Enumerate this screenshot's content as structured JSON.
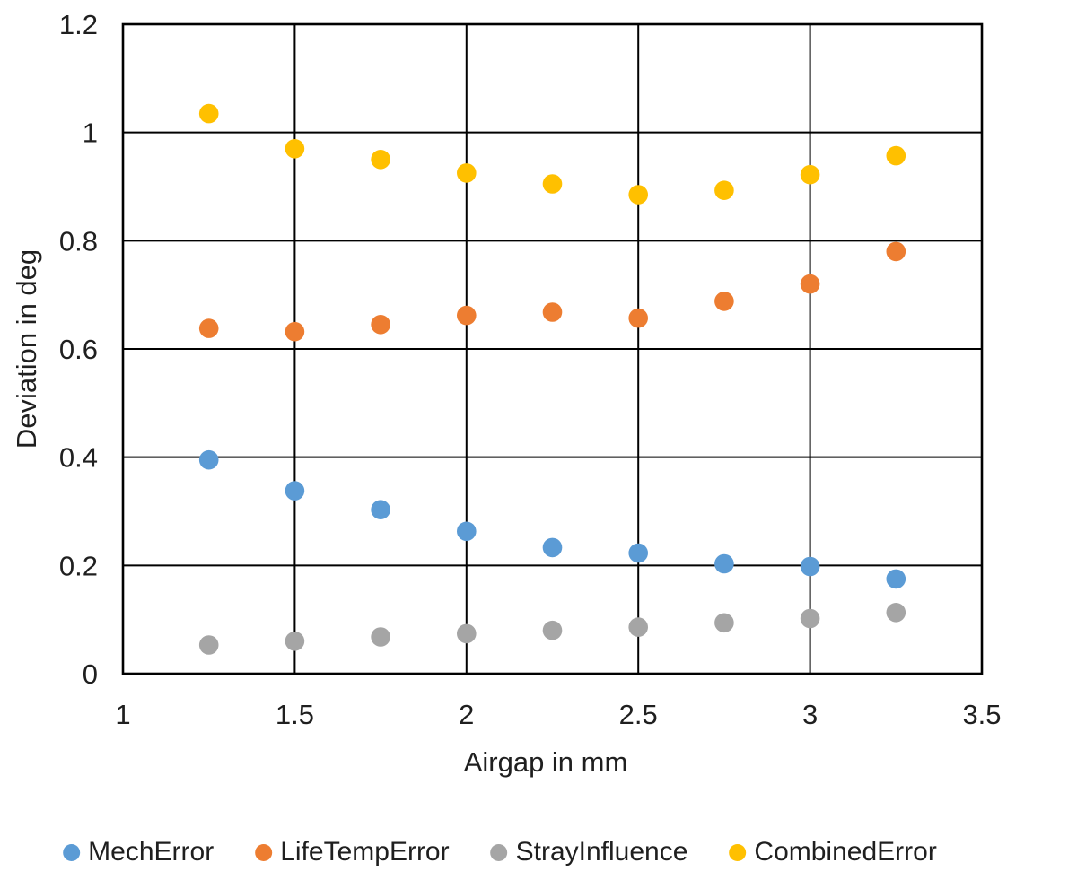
{
  "page": {
    "background": "#ffffff",
    "text_color": "#1f1f1f"
  },
  "chart_data": {
    "type": "scatter",
    "title": "",
    "xlabel": "Airgap in mm",
    "ylabel": "Deviation in deg",
    "xlim": [
      1,
      3.5
    ],
    "ylim": [
      0,
      1.2
    ],
    "x_tick_values": [
      1,
      1.5,
      2,
      2.5,
      3,
      3.5
    ],
    "x_tick_labels": [
      "1",
      "1.5",
      "2",
      "2.5",
      "3",
      "3.5"
    ],
    "y_tick_values": [
      0,
      0.2,
      0.4,
      0.6,
      0.8,
      1,
      1.2
    ],
    "y_tick_labels": [
      "0",
      "0.2",
      "0.4",
      "0.6",
      "0.8",
      "1",
      "1.2"
    ],
    "grid": true,
    "grid_color": "#000000",
    "border_color": "#000000",
    "legend_position": "bottom",
    "x": [
      1.25,
      1.5,
      1.75,
      2,
      2.25,
      2.5,
      2.75,
      3,
      3.25
    ],
    "series": [
      {
        "name": "MechError",
        "color": "#5B9BD5",
        "marker": "circle",
        "trendline": "linear",
        "values": [
          0.395,
          0.338,
          0.303,
          0.263,
          0.233,
          0.223,
          0.203,
          0.198,
          0.175
        ]
      },
      {
        "name": "LifeTempError",
        "color": "#ED7D31",
        "marker": "circle",
        "trendline": "linear",
        "values": [
          0.638,
          0.632,
          0.645,
          0.662,
          0.668,
          0.657,
          0.688,
          0.72,
          0.78
        ]
      },
      {
        "name": "StrayInfluence",
        "color": "#A5A5A5",
        "marker": "circle",
        "trendline": "linear",
        "values": [
          0.053,
          0.06,
          0.068,
          0.074,
          0.08,
          0.086,
          0.094,
          0.102,
          0.113
        ]
      },
      {
        "name": "CombinedError",
        "color": "#FFC000",
        "marker": "circle",
        "trendline": "poly2",
        "values": [
          1.035,
          0.97,
          0.95,
          0.925,
          0.905,
          0.885,
          0.893,
          0.922,
          0.957
        ]
      }
    ]
  }
}
